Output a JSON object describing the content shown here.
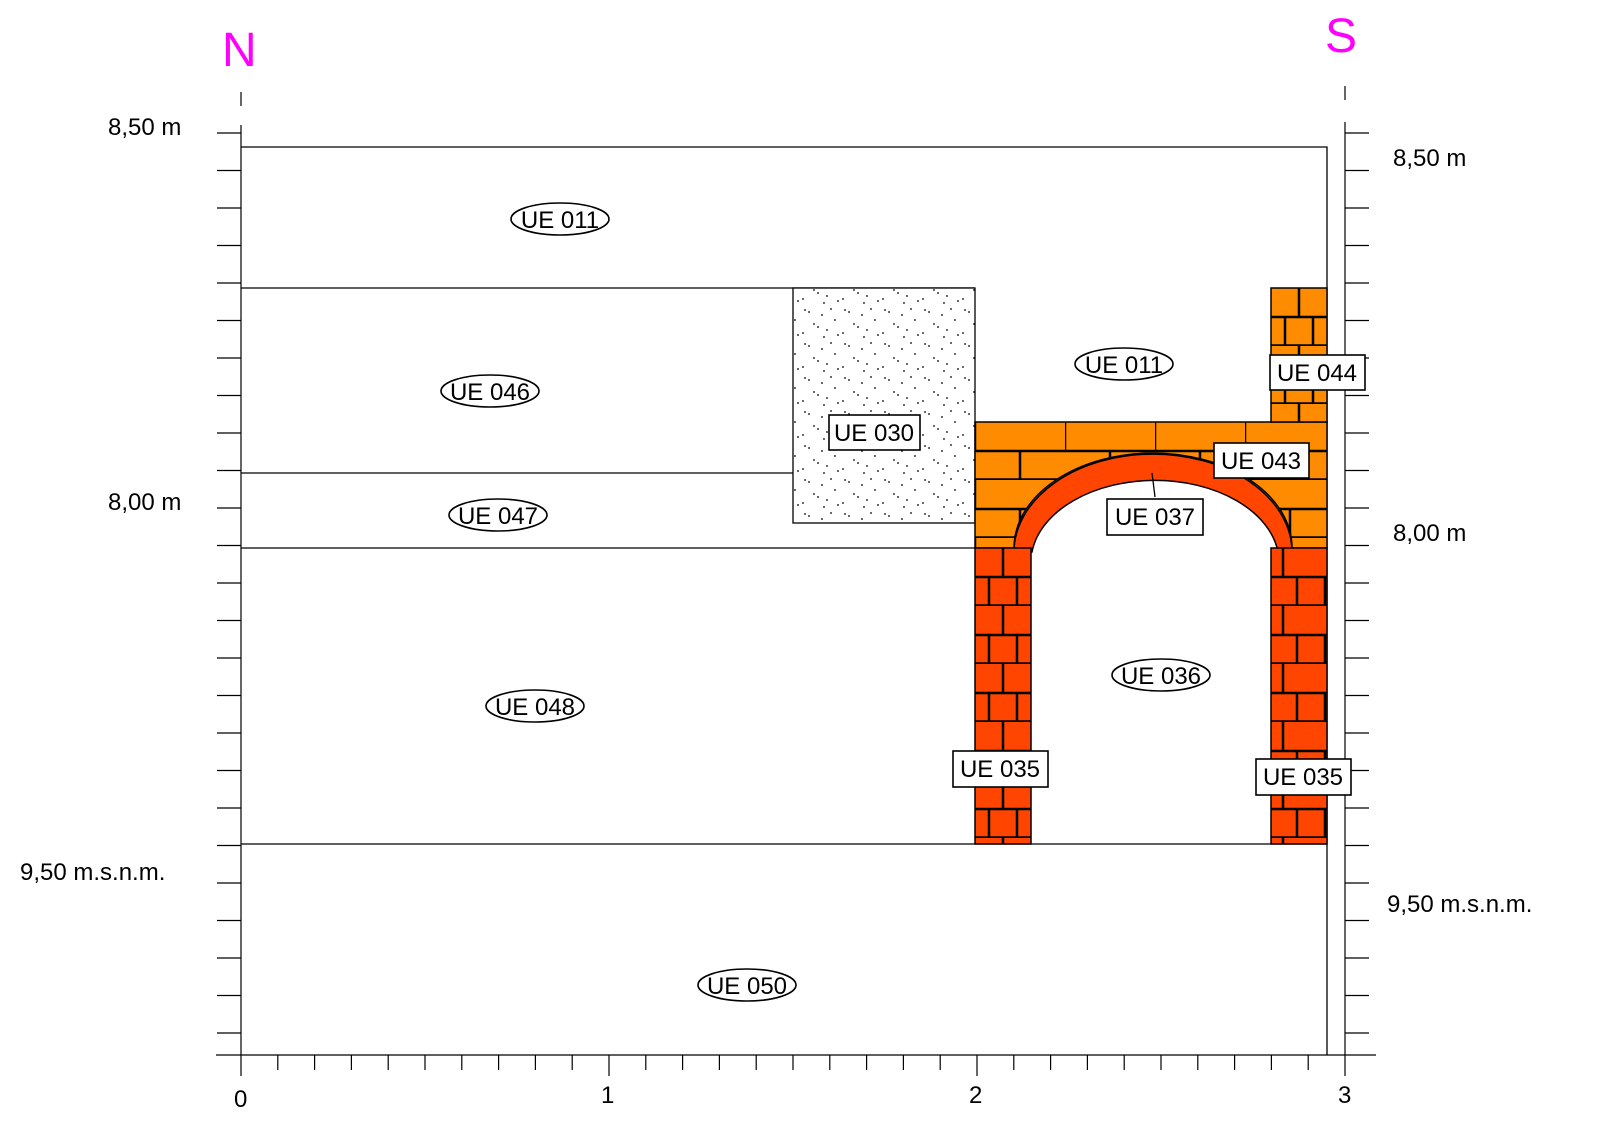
{
  "orientation": {
    "north": "N",
    "south": "S",
    "color": "#ff00ff"
  },
  "left_scale_labels": [
    "8,50 m",
    "8,00 m",
    "9,50 m.s.n.m."
  ],
  "right_scale_labels": [
    "8,50 m",
    "8,00 m",
    "9,50 m.s.n.m."
  ],
  "bottom_scale_labels": [
    "0",
    "1",
    "2",
    "3"
  ],
  "units": [
    {
      "id": "UE 011",
      "style": "oval"
    },
    {
      "id": "UE 046",
      "style": "oval"
    },
    {
      "id": "UE 047",
      "style": "oval"
    },
    {
      "id": "UE 048",
      "style": "oval"
    },
    {
      "id": "UE 050",
      "style": "oval"
    },
    {
      "id": "UE 011",
      "style": "oval"
    },
    {
      "id": "UE 036",
      "style": "oval"
    },
    {
      "id": "UE 030",
      "style": "box"
    },
    {
      "id": "UE 044",
      "style": "box"
    },
    {
      "id": "UE 043",
      "style": "box"
    },
    {
      "id": "UE 037",
      "style": "box"
    },
    {
      "id": "UE 035",
      "style": "box"
    },
    {
      "id": "UE 035",
      "style": "box"
    }
  ],
  "colors": {
    "upper_brick": "#ff8c00",
    "lower_brick": "#ff4500",
    "mortar": "#000000",
    "fill_layers": "#ffffff"
  }
}
